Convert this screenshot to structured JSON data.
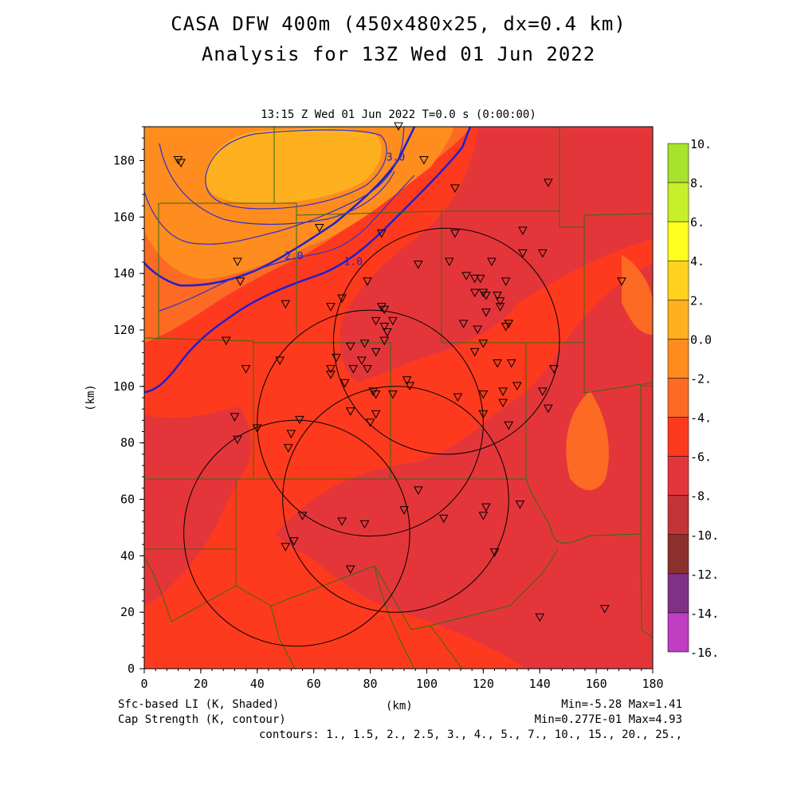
{
  "header": {
    "title_line1": "CASA DFW 400m (450x480x25, dx=0.4 km)",
    "title_line2": "Analysis for 13Z Wed 01 Jun 2022",
    "time_label": "13:15 Z Wed 01 Jun 2022    T=0.0 s (0:00:00)"
  },
  "footer": {
    "shaded_label": "Sfc-based LI (K, Shaded)",
    "contour_label": "Cap Strength (K, contour)",
    "x_unit": "(km)",
    "shaded_minmax": "Min=-5.28 Max=1.41",
    "contour_minmax": "Min=0.277E-01 Max=4.93",
    "contours_text": "contours: 1., 1.5, 2., 2.5, 3., 4., 5., 7., 10., 15., 20., 25.,"
  },
  "chart_data": {
    "type": "heatmap",
    "title": "CASA DFW 400m (450x480x25, dx=0.4 km)",
    "subtitle": "Analysis for 13Z Wed 01 Jun 2022",
    "xlabel": "(km)",
    "ylabel": "(km)",
    "xlim": [
      0,
      180
    ],
    "ylim": [
      0,
      192
    ],
    "x_ticks": [
      0,
      20,
      40,
      60,
      80,
      100,
      120,
      140,
      160,
      180
    ],
    "y_ticks": [
      0,
      20,
      40,
      60,
      80,
      100,
      120,
      140,
      160,
      180
    ],
    "colorbar": {
      "labels": [
        "10.",
        "8.",
        "6.",
        "4.",
        "2.",
        "0.0",
        "-2.",
        "-4.",
        "-6.",
        "-8.",
        "-10.",
        "-12.",
        "-14.",
        "-16."
      ],
      "colors": [
        "#a6e22e",
        "#c8f02a",
        "#ffff1e",
        "#ffd21e",
        "#ffb01e",
        "#fe8c1e",
        "#fc6a24",
        "#fe3a1e",
        "#e4363a",
        "#c23436",
        "#8c302e",
        "#7e3286",
        "#c03cc0",
        "#e040e0"
      ]
    },
    "shaded_field": "Sfc-based LI (K)",
    "contour_field": "Cap Strength (K)",
    "contour_labels": [
      {
        "text": "3.0",
        "x": 89,
        "y": 180
      },
      {
        "text": "2.0",
        "x": 53,
        "y": 145
      },
      {
        "text": "1.0",
        "x": 74,
        "y": 143
      }
    ],
    "radar_rings": [
      {
        "cx": 107,
        "cy": 116,
        "r": 40
      },
      {
        "cx": 80,
        "cy": 87,
        "r": 40
      },
      {
        "cx": 89,
        "cy": 60,
        "r": 40
      },
      {
        "cx": 54,
        "cy": 48,
        "r": 40
      }
    ],
    "stations": [
      [
        12,
        180
      ],
      [
        13,
        179
      ],
      [
        90,
        192
      ],
      [
        99,
        180
      ],
      [
        110,
        170
      ],
      [
        143,
        172
      ],
      [
        33,
        144
      ],
      [
        62,
        156
      ],
      [
        84,
        154
      ],
      [
        34,
        137
      ],
      [
        50,
        129
      ],
      [
        70,
        131
      ],
      [
        79,
        137
      ],
      [
        66,
        128
      ],
      [
        84,
        128
      ],
      [
        110,
        154
      ],
      [
        97,
        143
      ],
      [
        108,
        144
      ],
      [
        114,
        139
      ],
      [
        117,
        138
      ],
      [
        119,
        138
      ],
      [
        123,
        144
      ],
      [
        134,
        155
      ],
      [
        134,
        147
      ],
      [
        141,
        147
      ],
      [
        169,
        137
      ],
      [
        128,
        137
      ],
      [
        117,
        133
      ],
      [
        120,
        133
      ],
      [
        121,
        132
      ],
      [
        125,
        132
      ],
      [
        126,
        128
      ],
      [
        126,
        130
      ],
      [
        121,
        126
      ],
      [
        113,
        122
      ],
      [
        118,
        120
      ],
      [
        129,
        122
      ],
      [
        128,
        121
      ],
      [
        85,
        127
      ],
      [
        82,
        123
      ],
      [
        88,
        123
      ],
      [
        85,
        121
      ],
      [
        86,
        119
      ],
      [
        85,
        116
      ],
      [
        73,
        114
      ],
      [
        68,
        110
      ],
      [
        74,
        106
      ],
      [
        66,
        106
      ],
      [
        66,
        104
      ],
      [
        71,
        101
      ],
      [
        78,
        115
      ],
      [
        82,
        112
      ],
      [
        77,
        109
      ],
      [
        79,
        106
      ],
      [
        82,
        97
      ],
      [
        81,
        98
      ],
      [
        88,
        97
      ],
      [
        93,
        102
      ],
      [
        94,
        100
      ],
      [
        29,
        116
      ],
      [
        36,
        106
      ],
      [
        48,
        109
      ],
      [
        32,
        89
      ],
      [
        33,
        81
      ],
      [
        40,
        85
      ],
      [
        51,
        78
      ],
      [
        52,
        83
      ],
      [
        55,
        88
      ],
      [
        82,
        90
      ],
      [
        73,
        91
      ],
      [
        80,
        87
      ],
      [
        111,
        96
      ],
      [
        117,
        112
      ],
      [
        120,
        115
      ],
      [
        120,
        97
      ],
      [
        127,
        98
      ],
      [
        125,
        108
      ],
      [
        130,
        108
      ],
      [
        132,
        100
      ],
      [
        127,
        94
      ],
      [
        120,
        90
      ],
      [
        129,
        86
      ],
      [
        141,
        98
      ],
      [
        143,
        92
      ],
      [
        145,
        106
      ],
      [
        97,
        63
      ],
      [
        92,
        56
      ],
      [
        106,
        53
      ],
      [
        120,
        54
      ],
      [
        121,
        57
      ],
      [
        133,
        58
      ],
      [
        124,
        41
      ],
      [
        56,
        54
      ],
      [
        70,
        52
      ],
      [
        78,
        51
      ],
      [
        50,
        43
      ],
      [
        53,
        45
      ],
      [
        73,
        35
      ],
      [
        140,
        18
      ],
      [
        163,
        21
      ]
    ]
  }
}
